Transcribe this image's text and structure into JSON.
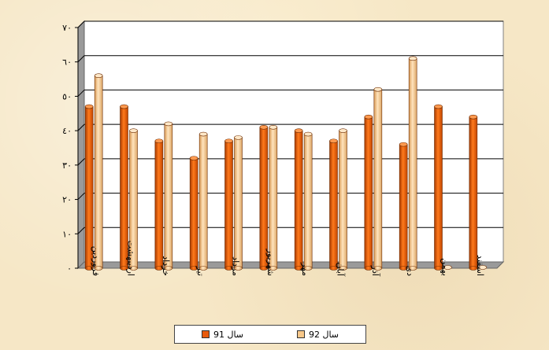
{
  "chart_data": {
    "type": "bar",
    "categories": [
      "فروردین",
      "اردیبهشت",
      "خرداد",
      "تیر",
      "مرداد",
      "شهریور",
      "مهر",
      "آبان",
      "آذر",
      "دی",
      "بهمن",
      "اسفند"
    ],
    "series": [
      {
        "name": "سال 91",
        "values": [
          47,
          47,
          37,
          32,
          37,
          41,
          40,
          37,
          44,
          36,
          47,
          44
        ],
        "color": "#e85a0c"
      },
      {
        "name": "سال 92",
        "values": [
          56,
          40,
          42,
          39,
          38,
          41,
          39,
          40,
          52,
          61,
          0,
          0
        ],
        "color": "#f8c88a"
      }
    ],
    "ylim": [
      0,
      70
    ],
    "y_ticks": [
      0,
      10,
      20,
      30,
      40,
      50,
      60,
      70
    ],
    "y_tick_labels": [
      "٠",
      "١٠",
      "٢٠",
      "٣٠",
      "٤٠",
      "٥٠",
      "٦٠",
      "٧٠"
    ],
    "title": "",
    "xlabel": "",
    "ylabel": "",
    "grid": true,
    "legend_position": "bottom"
  }
}
